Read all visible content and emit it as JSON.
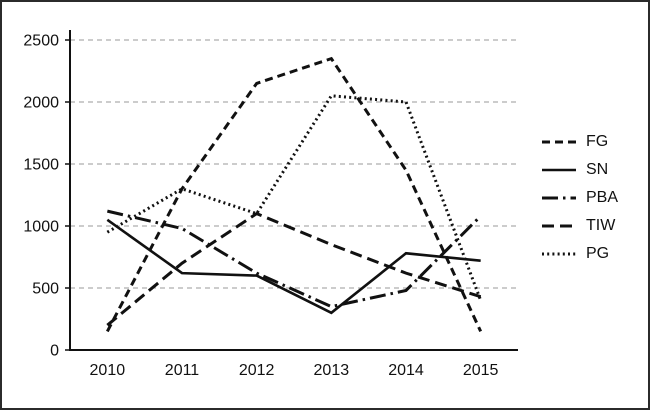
{
  "chart_data": {
    "type": "line",
    "title": "",
    "xlabel": "",
    "ylabel": "",
    "x": [
      "2010",
      "2011",
      "2012",
      "2013",
      "2014",
      "2015"
    ],
    "ylim": [
      0,
      2500
    ],
    "yticks": [
      0,
      500,
      1000,
      1500,
      2000,
      2500
    ],
    "grid": "horizontal-dashed",
    "legend_position": "right",
    "line_color": "#111111",
    "gridline_color": "#9a9a9a",
    "series": [
      {
        "name": "FG",
        "style": "dashed",
        "values": [
          150,
          1300,
          2150,
          2350,
          1450,
          150
        ]
      },
      {
        "name": "SN",
        "style": "solid",
        "values": [
          1050,
          620,
          600,
          300,
          780,
          720
        ]
      },
      {
        "name": "PBA",
        "style": "dash-dot",
        "values": [
          1120,
          980,
          620,
          350,
          480,
          1080
        ]
      },
      {
        "name": "TIW",
        "style": "long-dash",
        "values": [
          200,
          700,
          1100,
          850,
          620,
          430
        ]
      },
      {
        "name": "PG",
        "style": "dotted",
        "values": [
          950,
          1300,
          1100,
          2050,
          2000,
          400
        ]
      }
    ]
  }
}
